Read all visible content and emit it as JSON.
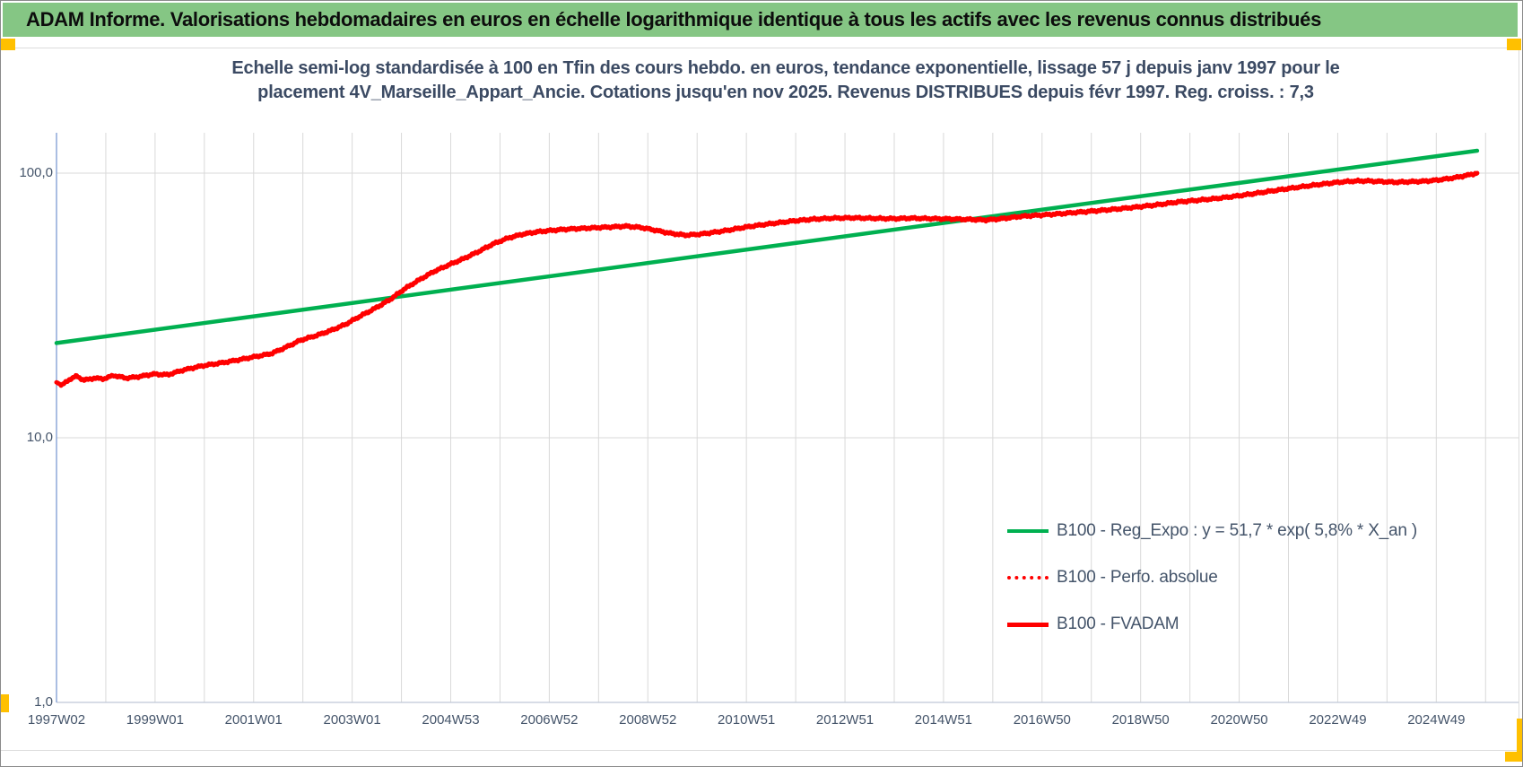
{
  "banner": {
    "title": "ADAM Informe. Valorisations hebdomadaires en euros en échelle logarithmique identique à tous les actifs avec les revenus connus distribués"
  },
  "chart": {
    "title_line1": "Echelle semi-log standardisée à 100 en Tfin des cours hebdo. en euros, tendance exponentielle, lissage 57 j depuis janv 1997 pour le",
    "title_line2": "placement 4V_Marseille_Appart_Ancie. Cotations jusqu'en nov 2025. Revenus DISTRIBUES depuis févr 1997. Reg. croiss. : 7,3"
  },
  "chart_data": {
    "type": "line",
    "title": "Echelle semi-log standardisée à 100 en Tfin des cours hebdo. en euros, tendance exponentielle, lissage 57 j depuis janv 1997 pour le placement 4V_Marseille_Appart_Ancie. Cotations jusqu'en nov 2025. Revenus DISTRIBUES depuis févr 1997. Reg. croiss. : 7,3",
    "x_axis": {
      "tick_labels": [
        "1997W02",
        "1999W01",
        "2001W01",
        "2003W01",
        "2004W53",
        "2006W52",
        "2008W52",
        "2010W51",
        "2012W51",
        "2014W51",
        "2016W50",
        "2018W50",
        "2020W50",
        "2022W49",
        "2024W49"
      ],
      "range_years": [
        1997.04,
        2025.87
      ],
      "grid_interval": "1 year"
    },
    "y_axis": {
      "scale": "log10",
      "tick_labels": [
        "100,0",
        "10,0",
        "1,0"
      ],
      "tick_values": [
        100,
        10,
        1
      ],
      "ylim": [
        1,
        144
      ]
    },
    "legend_position": "inside-bottom-right",
    "colors": {
      "trend": "#00B050",
      "series": "#FF0000",
      "grid": "#D9D9D9",
      "axis_text": "#44546A"
    },
    "series": [
      {
        "name": "B100 - Reg_Expo : y = 51,7 * exp( 5,8% *  X_an )",
        "formula": "y = 51,7 * exp( 5,8% * X_an )",
        "color": "#00B050",
        "style": "solid",
        "width": 4.5,
        "points": [
          [
            1997.04,
            22.8
          ],
          [
            2025.87,
            121.5
          ]
        ]
      },
      {
        "name": "B100 - Perfo. absolue",
        "color": "#FF0000",
        "style": "dotted",
        "width": 3,
        "note": "coincides with B100 - FVADAM (hidden behind it)",
        "points": []
      },
      {
        "name": "B100 - FVADAM",
        "color": "#FF0000",
        "style": "solid",
        "width": 5,
        "points": [
          [
            1997.04,
            16.2
          ],
          [
            1997.15,
            15.8
          ],
          [
            1997.3,
            16.6
          ],
          [
            1997.45,
            17.1
          ],
          [
            1997.6,
            16.5
          ],
          [
            1997.8,
            16.8
          ],
          [
            1998.0,
            16.7
          ],
          [
            1998.2,
            17.2
          ],
          [
            1998.45,
            16.8
          ],
          [
            1998.7,
            17.0
          ],
          [
            1999.0,
            17.4
          ],
          [
            1999.3,
            17.3
          ],
          [
            1999.6,
            18.0
          ],
          [
            2000.0,
            18.7
          ],
          [
            2000.4,
            19.2
          ],
          [
            2000.8,
            19.8
          ],
          [
            2001.1,
            20.3
          ],
          [
            2001.4,
            20.8
          ],
          [
            2001.7,
            22.0
          ],
          [
            2002.0,
            23.4
          ],
          [
            2002.3,
            24.3
          ],
          [
            2002.6,
            25.4
          ],
          [
            2002.9,
            26.8
          ],
          [
            2003.2,
            28.8
          ],
          [
            2003.5,
            30.8
          ],
          [
            2003.8,
            33.2
          ],
          [
            2004.1,
            36.5
          ],
          [
            2004.4,
            39.5
          ],
          [
            2004.7,
            42.5
          ],
          [
            2005.0,
            45.0
          ],
          [
            2005.3,
            47.5
          ],
          [
            2005.6,
            50.5
          ],
          [
            2005.9,
            54.0
          ],
          [
            2006.2,
            56.8
          ],
          [
            2006.5,
            58.8
          ],
          [
            2006.8,
            60.0
          ],
          [
            2007.1,
            60.8
          ],
          [
            2007.4,
            61.4
          ],
          [
            2007.7,
            61.8
          ],
          [
            2008.0,
            62.2
          ],
          [
            2008.3,
            62.6
          ],
          [
            2008.6,
            63.0
          ],
          [
            2008.9,
            62.3
          ],
          [
            2009.2,
            60.8
          ],
          [
            2009.5,
            59.2
          ],
          [
            2009.8,
            58.3
          ],
          [
            2010.1,
            58.8
          ],
          [
            2010.4,
            59.8
          ],
          [
            2010.7,
            61.0
          ],
          [
            2011.0,
            62.4
          ],
          [
            2011.3,
            63.6
          ],
          [
            2011.7,
            65.0
          ],
          [
            2012.0,
            66.0
          ],
          [
            2012.4,
            67.0
          ],
          [
            2012.8,
            67.6
          ],
          [
            2013.2,
            67.8
          ],
          [
            2013.6,
            67.5
          ],
          [
            2014.0,
            67.3
          ],
          [
            2014.4,
            67.6
          ],
          [
            2014.8,
            67.3
          ],
          [
            2015.2,
            67.1
          ],
          [
            2015.6,
            66.8
          ],
          [
            2015.9,
            66.5
          ],
          [
            2016.2,
            67.2
          ],
          [
            2016.6,
            68.6
          ],
          [
            2017.0,
            69.4
          ],
          [
            2017.4,
            70.2
          ],
          [
            2017.8,
            71.2
          ],
          [
            2018.2,
            72.2
          ],
          [
            2018.6,
            73.3
          ],
          [
            2019.0,
            74.6
          ],
          [
            2019.4,
            76.0
          ],
          [
            2019.8,
            77.8
          ],
          [
            2020.2,
            79.0
          ],
          [
            2020.6,
            80.3
          ],
          [
            2021.0,
            82.0
          ],
          [
            2021.4,
            84.0
          ],
          [
            2021.8,
            86.2
          ],
          [
            2022.2,
            88.3
          ],
          [
            2022.6,
            90.3
          ],
          [
            2023.0,
            92.2
          ],
          [
            2023.3,
            93.2
          ],
          [
            2023.6,
            93.5
          ],
          [
            2023.9,
            93.0
          ],
          [
            2024.2,
            92.4
          ],
          [
            2024.5,
            92.8
          ],
          [
            2024.8,
            93.2
          ],
          [
            2025.1,
            94.3
          ],
          [
            2025.4,
            96.0
          ],
          [
            2025.65,
            98.0
          ],
          [
            2025.87,
            100.0
          ]
        ]
      }
    ]
  }
}
